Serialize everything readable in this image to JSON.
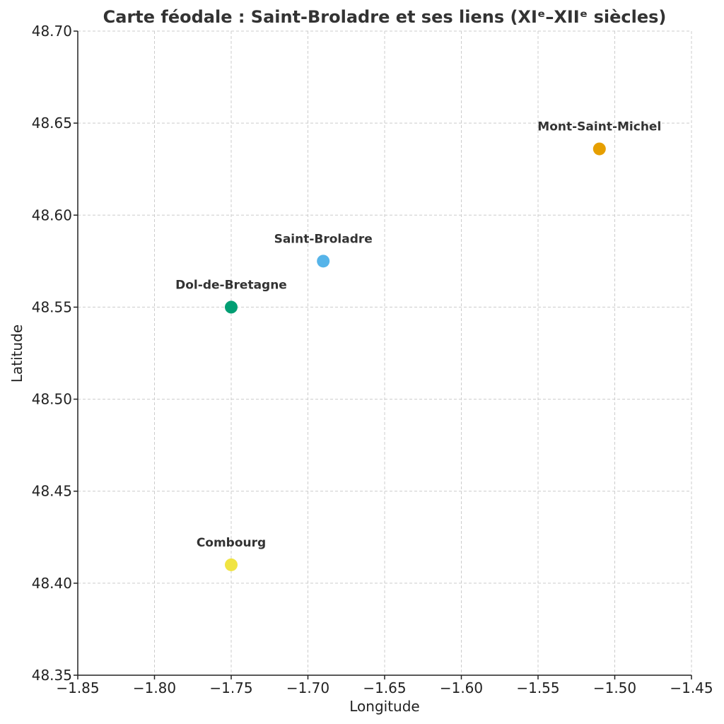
{
  "chart_data": {
    "type": "scatter",
    "title": "Carte féodale : Saint-Broladre et ses liens (XIᵉ–XIIᵉ siècles)",
    "xlabel": "Longitude",
    "ylabel": "Latitude",
    "xlim": [
      -1.85,
      -1.45
    ],
    "ylim": [
      48.35,
      48.7
    ],
    "grid": true,
    "x_ticks": [
      -1.85,
      -1.8,
      -1.75,
      -1.7,
      -1.65,
      -1.6,
      -1.55,
      -1.5,
      -1.45
    ],
    "x_tick_labels": [
      "−1.85",
      "−1.80",
      "−1.75",
      "−1.70",
      "−1.65",
      "−1.60",
      "−1.55",
      "−1.50",
      "−1.45"
    ],
    "y_ticks": [
      48.35,
      48.4,
      48.45,
      48.5,
      48.55,
      48.6,
      48.65,
      48.7
    ],
    "y_tick_labels": [
      "48.35",
      "48.40",
      "48.45",
      "48.50",
      "48.55",
      "48.60",
      "48.65",
      "48.70"
    ],
    "points": [
      {
        "name": "Saint-Broladre",
        "x": -1.69,
        "y": 48.575,
        "color": "#56b4e9"
      },
      {
        "name": "Dol-de-Bretagne",
        "x": -1.75,
        "y": 48.55,
        "color": "#009e73"
      },
      {
        "name": "Mont-Saint-Michel",
        "x": -1.51,
        "y": 48.636,
        "color": "#e69f00"
      },
      {
        "name": "Combourg",
        "x": -1.75,
        "y": 48.41,
        "color": "#f0e442"
      }
    ]
  }
}
